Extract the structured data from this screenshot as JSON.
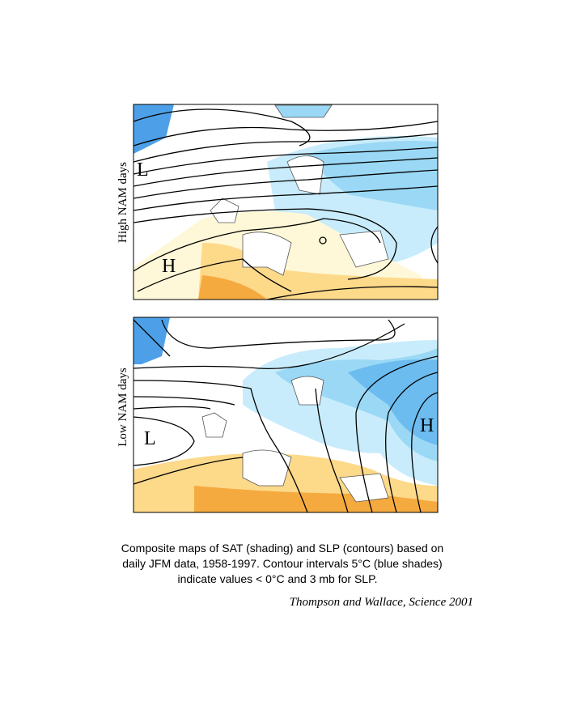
{
  "panels": [
    {
      "label": "High NAM days",
      "markers": [
        "L",
        "H"
      ]
    },
    {
      "label": "Low NAM days",
      "markers": [
        "L",
        "H"
      ]
    }
  ],
  "caption": [
    "Composite maps of SAT (shading) and SLP (contours) based on",
    "daily JFM data, 1958-1997. Contour intervals 5°C (blue shades)",
    "indicate values < 0°C and 3 mb for SLP."
  ],
  "citation": "Thompson and Wallace, Science 2001"
}
